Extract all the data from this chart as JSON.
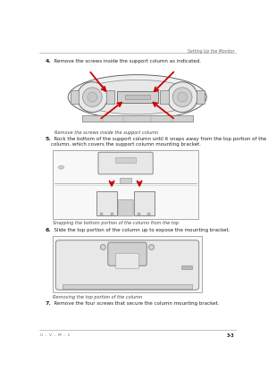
{
  "bg_color": "#ffffff",
  "header_text": "Setting Up the Monitor",
  "footer_left": "U  –  V  –  M  –  1",
  "footer_right": "3-3",
  "step4_bold": "4.",
  "step4_text": "  Remove the screws inside the support column as indicated.",
  "caption1": "Remove the screws inside the support column",
  "step5_bold": "5.",
  "step5_text": "  Rock the bottom of the support column until it snaps away from the top portion of the column, which covers the support column mounting bracket.",
  "caption2": "Snapping the bottom portion of the column from the top",
  "step6_bold": "6.",
  "step6_text": "  Slide the top portion of the column up to expose the mounting bracket.",
  "caption3": "Removing the top portion of the column",
  "step7_bold": "7.",
  "step7_text": "  Remove the four screws that secure the column mounting bracket.",
  "red": "#cc0000",
  "edge_color": "#888888",
  "dark_edge": "#555555",
  "face_light": "#e8e8e8",
  "face_mid": "#d0d0d0",
  "face_dark": "#b8b8b8",
  "text_color": "#222222",
  "caption_color": "#444444",
  "header_color": "#666666",
  "line_color": "#aaaaaa"
}
